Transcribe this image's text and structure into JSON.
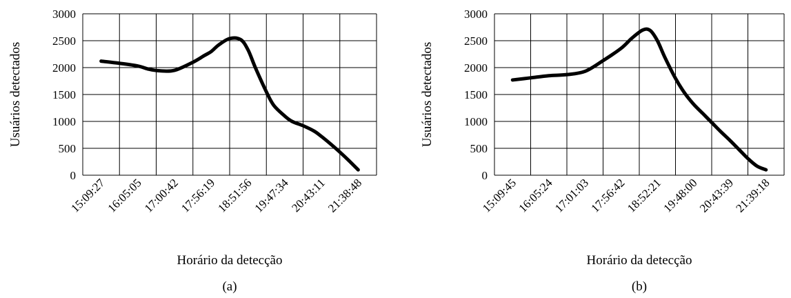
{
  "chart_data": [
    {
      "type": "line",
      "panel_label": "(a)",
      "xlabel": "Horário  da detecção",
      "ylabel": "Usuários detectados",
      "ylim": [
        0,
        3000
      ],
      "yticks": [
        "0",
        "500",
        "1000",
        "1500",
        "2000",
        "2500",
        "3000"
      ],
      "categories": [
        "15:09:27",
        "16:05:05",
        "17:00:42",
        "17:56:19",
        "18:51:56",
        "19:47:34",
        "20:43:11",
        "21:38:48"
      ],
      "grid": true,
      "series": [
        {
          "x": [
            0,
            0.5,
            1,
            1.3,
            1.6,
            2,
            2.5,
            2.8,
            3,
            3.2,
            3.5,
            3.8,
            4,
            4.2,
            4.5,
            4.7,
            5,
            5.2,
            5.5,
            5.8,
            6,
            6.25,
            6.5,
            6.75,
            7
          ],
          "y": [
            2120,
            2080,
            2030,
            1970,
            1940,
            1950,
            2100,
            2220,
            2300,
            2420,
            2540,
            2520,
            2330,
            2000,
            1550,
            1300,
            1100,
            1000,
            920,
            820,
            720,
            580,
            430,
            270,
            100
          ]
        }
      ]
    },
    {
      "type": "line",
      "panel_label": "(b)",
      "xlabel": "Horário  da detecção",
      "ylabel": "Usuários detectados",
      "ylim": [
        0,
        3000
      ],
      "yticks": [
        "0",
        "500",
        "1000",
        "1500",
        "2000",
        "2500",
        "3000"
      ],
      "categories": [
        "15:09:45",
        "16:05:24",
        "17:01:03",
        "17:56:42",
        "18:52:21",
        "19:48:00",
        "20:43:39",
        "21:39:18"
      ],
      "grid": true,
      "series": [
        {
          "x": [
            0,
            0.5,
            1,
            1.5,
            2,
            2.5,
            3,
            3.3,
            3.6,
            3.8,
            4,
            4.2,
            4.5,
            4.75,
            5,
            5.25,
            5.5,
            5.75,
            6,
            6.25,
            6.5,
            6.75,
            7
          ],
          "y": [
            1770,
            1810,
            1850,
            1870,
            1930,
            2130,
            2360,
            2550,
            2700,
            2690,
            2500,
            2200,
            1800,
            1530,
            1320,
            1150,
            980,
            810,
            650,
            480,
            310,
            170,
            100
          ]
        }
      ]
    }
  ]
}
